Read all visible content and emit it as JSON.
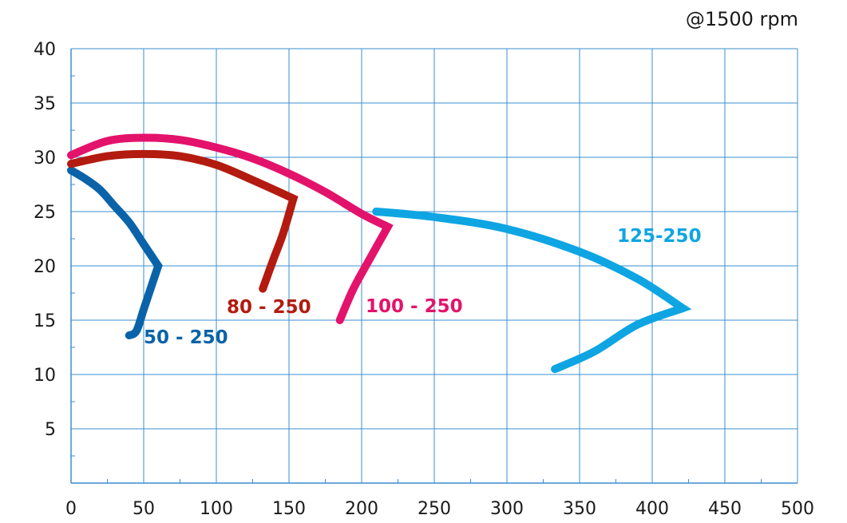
{
  "chart_data": {
    "type": "line",
    "title": "",
    "annotation": "@1500 rpm",
    "xlabel": "",
    "ylabel": "",
    "xlim": [
      0,
      500
    ],
    "ylim": [
      0,
      40
    ],
    "x_ticks": [
      0,
      50,
      100,
      150,
      200,
      250,
      300,
      350,
      400,
      450,
      500
    ],
    "y_ticks": [
      5,
      10,
      15,
      20,
      25,
      30,
      35,
      40
    ],
    "grid": true,
    "grid_color": "#3a8fd0",
    "series": [
      {
        "name": "50 - 250",
        "color": "#0a63a8",
        "points": [
          [
            0,
            28.8
          ],
          [
            10,
            28
          ],
          [
            20,
            27
          ],
          [
            30,
            25.5
          ],
          [
            40,
            24
          ],
          [
            50,
            22
          ],
          [
            60,
            20
          ],
          [
            55,
            18
          ],
          [
            50,
            16
          ],
          [
            45,
            14
          ],
          [
            40,
            13.6
          ]
        ]
      },
      {
        "name": "80 - 250",
        "color": "#b31b10",
        "points": [
          [
            0,
            29.4
          ],
          [
            25,
            30.1
          ],
          [
            50,
            30.3
          ],
          [
            75,
            30.1
          ],
          [
            100,
            29.3
          ],
          [
            125,
            27.9
          ],
          [
            153,
            26.2
          ],
          [
            146,
            23
          ],
          [
            139,
            20.5
          ],
          [
            132,
            17.9
          ]
        ]
      },
      {
        "name": "100 - 250",
        "color": "#e3136b",
        "points": [
          [
            0,
            30.2
          ],
          [
            25,
            31.5
          ],
          [
            50,
            31.8
          ],
          [
            75,
            31.6
          ],
          [
            100,
            30.9
          ],
          [
            125,
            29.9
          ],
          [
            150,
            28.5
          ],
          [
            175,
            26.8
          ],
          [
            200,
            24.8
          ],
          [
            218,
            23.6
          ],
          [
            205,
            20.5
          ],
          [
            194,
            17.8
          ],
          [
            185,
            15
          ]
        ]
      },
      {
        "name": "125-250",
        "color": "#0ea5e2",
        "points": [
          [
            210,
            25
          ],
          [
            250,
            24.5
          ],
          [
            300,
            23.4
          ],
          [
            350,
            21.3
          ],
          [
            390,
            18.8
          ],
          [
            421,
            16.1
          ],
          [
            390,
            14.6
          ],
          [
            360,
            12.1
          ],
          [
            333,
            10.5
          ]
        ]
      }
    ]
  }
}
